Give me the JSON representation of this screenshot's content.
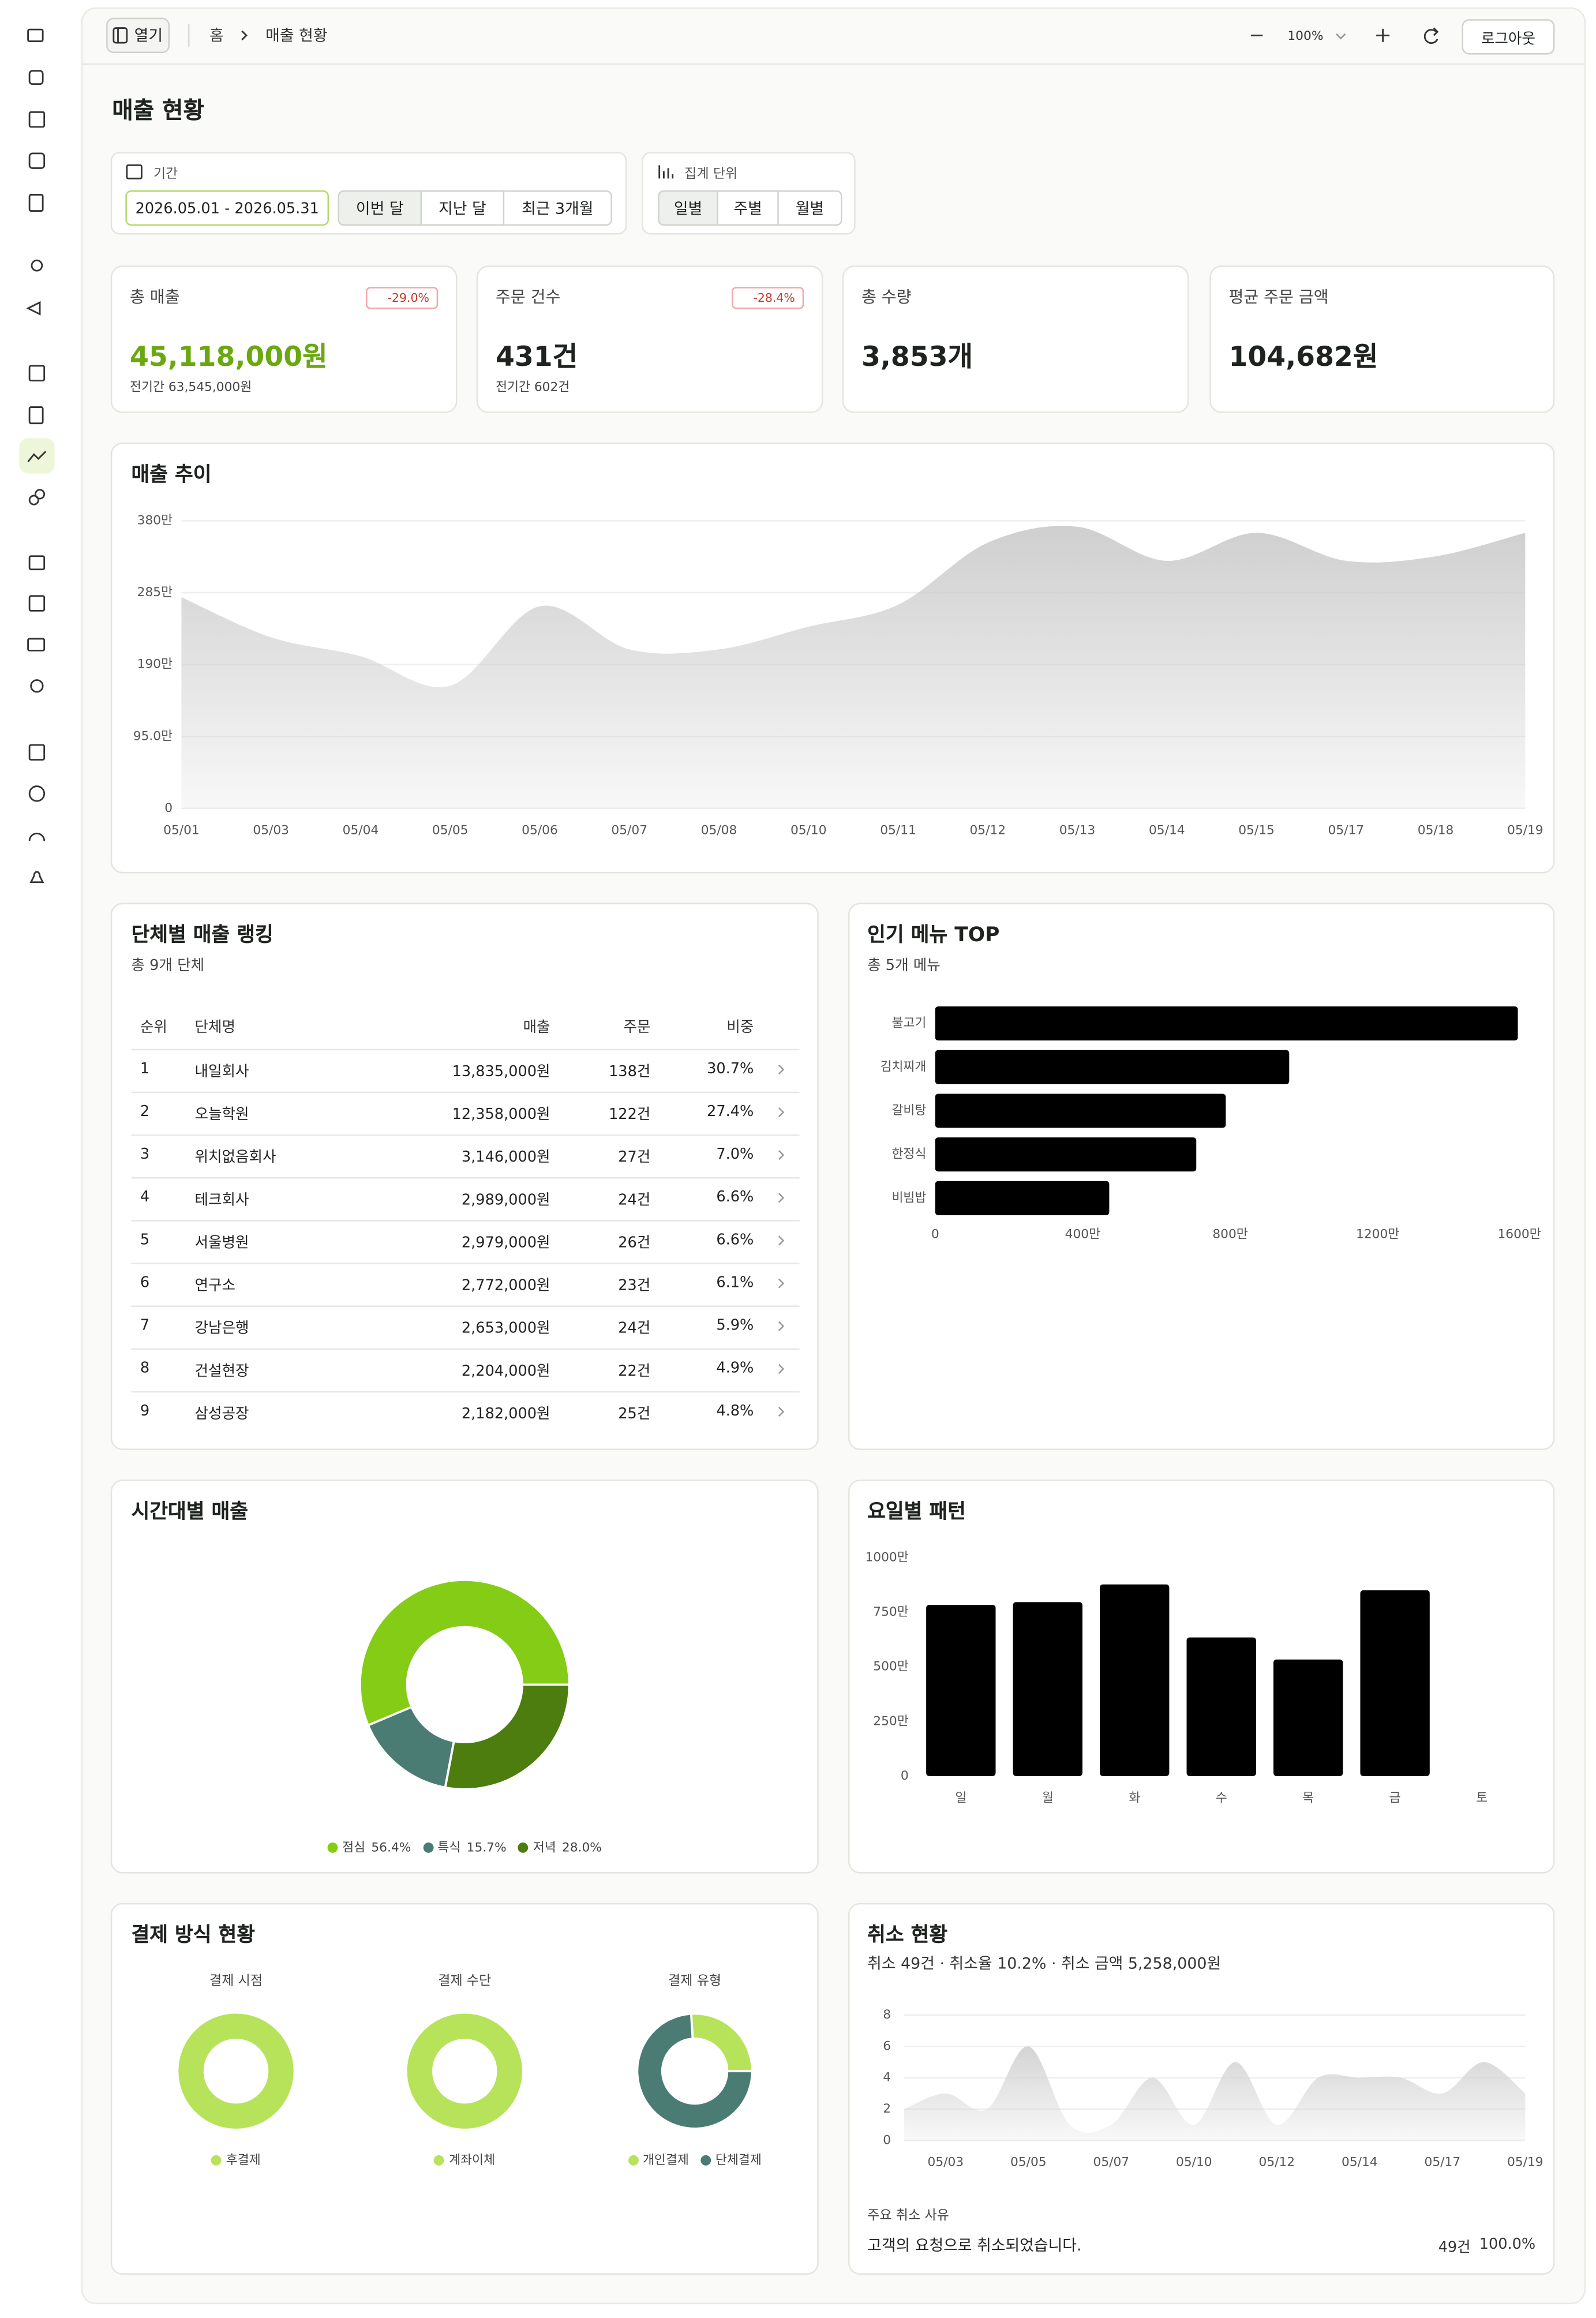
{
  "topbar": {
    "open": "열기",
    "breadcrumb": [
      "홈",
      "매출 현황"
    ],
    "zoom": "100%",
    "logout": "로그아웃"
  },
  "title": "매출 현황",
  "filters": {
    "period_label": "기간",
    "date_range": "2026.05.01 - 2026.05.31",
    "period_buttons": [
      "이번 달",
      "지난 달",
      "최근 3개월"
    ],
    "unit_label": "집계 단위",
    "unit_buttons": [
      "일별",
      "주별",
      "월별"
    ]
  },
  "kpis": [
    {
      "label": "총 매출",
      "value": "45,118,000원",
      "change": "-29.0%",
      "previous": "전기간 63,545,000원"
    },
    {
      "label": "주문 건수",
      "value": "431건",
      "change": "-28.4%",
      "previous": "전기간 602건"
    },
    {
      "label": "총 수량",
      "value": "3,853개"
    },
    {
      "label": "평균 주문 금액",
      "value": "104,682원"
    }
  ],
  "sales_trend": {
    "type": "area",
    "title": "매출 추이",
    "x": [
      "05/01",
      "05/03",
      "05/04",
      "05/05",
      "05/06",
      "05/07",
      "05/08",
      "05/10",
      "05/11",
      "05/12",
      "05/13",
      "05/14",
      "05/15",
      "05/17",
      "05/18",
      "05/19"
    ],
    "values": [
      279,
      226,
      201,
      162,
      267,
      210,
      210,
      240,
      269,
      351,
      372,
      327,
      364,
      327,
      333,
      364
    ],
    "ylim": [
      0,
      380
    ],
    "yticks": [
      0,
      {
        "value": 95,
        "label": "95.0만"
      },
      {
        "value": 190,
        "label": "190만"
      },
      {
        "value": 285,
        "label": "285만"
      },
      {
        "value": 380,
        "label": "380만"
      }
    ],
    "grid": true,
    "color": "#cfcfcf"
  },
  "ranking": {
    "title": "단체별 매출 랭킹",
    "subtitle": "총 9개 단체",
    "columns": [
      "순위",
      "단체명",
      "매출",
      "주문",
      "비중"
    ],
    "rows": [
      [
        "1",
        "내일회사",
        "13,835,000원",
        "138건",
        "30.7%"
      ],
      [
        "2",
        "오늘학원",
        "12,358,000원",
        "122건",
        "27.4%"
      ],
      [
        "3",
        "위치없음회사",
        "3,146,000원",
        "27건",
        "7.0%"
      ],
      [
        "4",
        "테크회사",
        "2,989,000원",
        "24건",
        "6.6%"
      ],
      [
        "5",
        "서울병원",
        "2,979,000원",
        "26건",
        "6.6%"
      ],
      [
        "6",
        "연구소",
        "2,772,000원",
        "23건",
        "6.1%"
      ],
      [
        "7",
        "강남은행",
        "2,653,000원",
        "24건",
        "5.9%"
      ],
      [
        "8",
        "건설현장",
        "2,204,000원",
        "22건",
        "4.9%"
      ],
      [
        "9",
        "삼성공장",
        "2,182,000원",
        "25건",
        "4.8%"
      ]
    ]
  },
  "popular_menu": {
    "type": "bar",
    "horizontal": true,
    "title": "인기 메뉴 TOP",
    "subtitle": "총 5개 메뉴",
    "categories": [
      "불고기",
      "김치찌개",
      "갈비탕",
      "한정식",
      "비빔밥"
    ],
    "values": [
      1580,
      960,
      788,
      708,
      472
    ],
    "xlim": [
      0,
      1600
    ],
    "xticks": [
      0,
      {
        "value": 400,
        "label": "400만"
      },
      {
        "value": 800,
        "label": "800만"
      },
      {
        "value": 1200,
        "label": "1200만"
      },
      {
        "value": 1600,
        "label": "1600만"
      }
    ],
    "grid": false,
    "color": "#000000"
  },
  "time_sales": {
    "type": "pie",
    "title": "시간대별 매출",
    "categories": [
      "점심",
      "특식",
      "저녁"
    ],
    "values": [
      56.4,
      15.7,
      28.0
    ],
    "value_labels": [
      "56.4%",
      "15.7%",
      "28.0%"
    ],
    "colors": [
      "#84cc16",
      "#4a7c74",
      "#4d7c0f"
    ]
  },
  "weekday": {
    "type": "bar",
    "title": "요일별 패턴",
    "categories": [
      "일",
      "월",
      "화",
      "수",
      "목",
      "금",
      "토"
    ],
    "values": [
      784,
      797,
      878,
      635,
      534,
      851,
      0
    ],
    "ylim": [
      0,
      1000
    ],
    "yticks": [
      0,
      {
        "value": 250,
        "label": "250만"
      },
      {
        "value": 500,
        "label": "500만"
      },
      {
        "value": 750,
        "label": "750만"
      },
      {
        "value": 1000,
        "label": "1000만"
      }
    ],
    "grid": false,
    "color": "#000000"
  },
  "payment": {
    "title": "결제 방식 현황",
    "charts": [
      {
        "type": "pie",
        "title": "결제 시점",
        "categories": [
          "후결제"
        ],
        "values": [
          100
        ],
        "colors": [
          "#b6e35a"
        ]
      },
      {
        "type": "pie",
        "title": "결제 수단",
        "categories": [
          "계좌이체"
        ],
        "values": [
          100
        ],
        "colors": [
          "#b6e35a"
        ]
      },
      {
        "type": "pie",
        "title": "결제 유형",
        "categories": [
          "개인결제",
          "단체결제"
        ],
        "values": [
          26,
          74
        ],
        "colors": [
          "#b6e35a",
          "#4a7c74"
        ]
      }
    ]
  },
  "cancellations": {
    "type": "area",
    "title": "취소 현황",
    "summary": "취소 49건 · 취소율 10.2% · 취소 금액 5,258,000원",
    "x": [
      null,
      "05/03",
      null,
      "05/05",
      null,
      "05/07",
      null,
      "05/10",
      null,
      "05/12",
      null,
      "05/14",
      null,
      "05/17",
      null,
      "05/19"
    ],
    "values": [
      2,
      3,
      2,
      6,
      1,
      1,
      4,
      1,
      5,
      1,
      4,
      4,
      4,
      3,
      5,
      3
    ],
    "ylim": [
      0,
      8
    ],
    "yticks": [
      0,
      2,
      4,
      6,
      8
    ],
    "grid": true,
    "color": "#d4d4d4",
    "reasons_title": "주요 취소 사유",
    "reasons": [
      {
        "reason": "고객의 요청으로 취소되었습니다.",
        "count": "49건",
        "share": "100.0%"
      }
    ]
  }
}
